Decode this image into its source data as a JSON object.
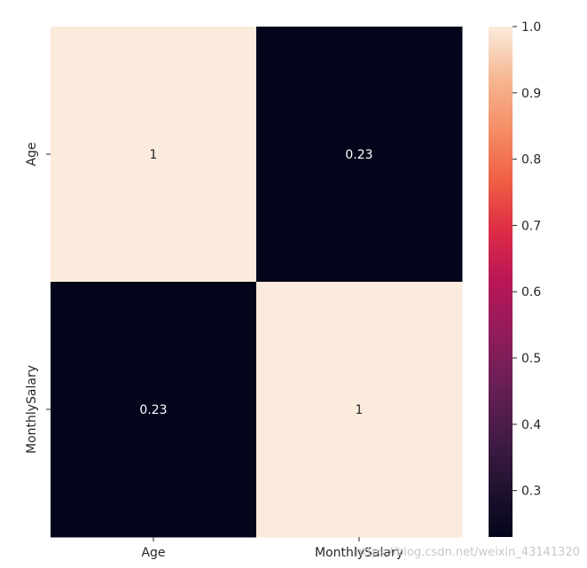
{
  "chart_data": {
    "type": "heatmap",
    "title": "",
    "xlabel": "",
    "ylabel": "",
    "x_categories": [
      "Age",
      "MonthlySalary"
    ],
    "y_categories": [
      "Age",
      "MonthlySalary"
    ],
    "values": [
      [
        1,
        0.23
      ],
      [
        0.23,
        1
      ]
    ],
    "annotations": [
      [
        "1",
        "0.23"
      ],
      [
        "0.23",
        "1"
      ]
    ],
    "colorbar": {
      "range": [
        0.23,
        1.0
      ],
      "ticks": [
        0.3,
        0.4,
        0.5,
        0.6,
        0.7,
        0.8,
        0.9,
        1.0
      ],
      "tick_labels": [
        "0.3",
        "0.4",
        "0.5",
        "0.6",
        "0.7",
        "0.8",
        "0.9",
        "1.0"
      ],
      "colormap": "rocket"
    },
    "colors": {
      "high": "#fae9dc",
      "low": "#03051a",
      "text_on_light": "#262626",
      "text_on_dark": "#ffffff"
    }
  },
  "watermark": "https://blog.csdn.net/weixin_43141320"
}
